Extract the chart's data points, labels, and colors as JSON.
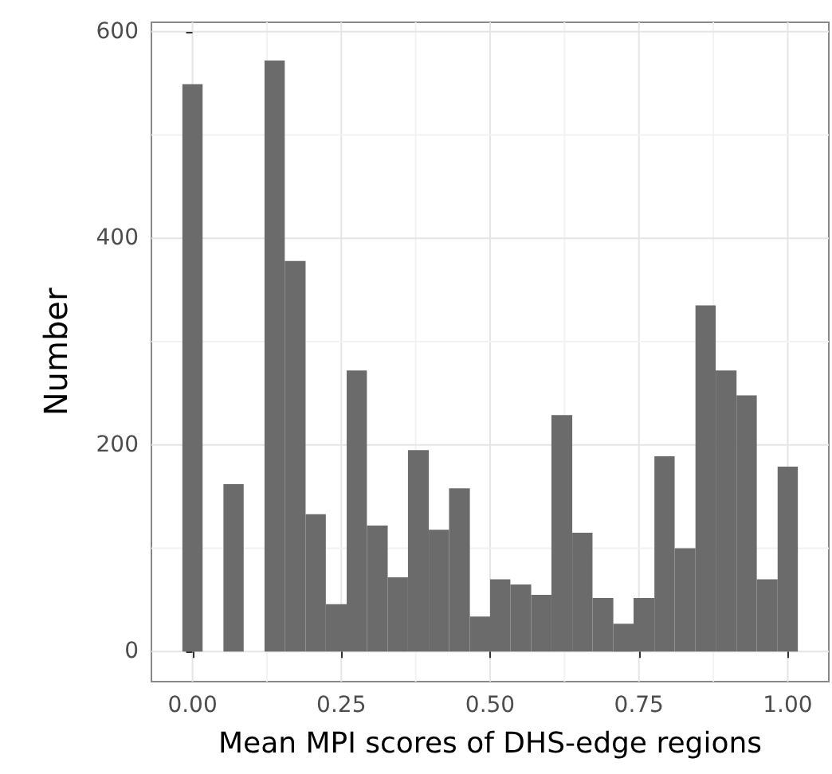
{
  "chart_data": {
    "type": "histogram",
    "xlabel": "Mean MPI scores of DHS-edge regions",
    "ylabel": "Number",
    "color": "#6b6b6b",
    "bins": [
      -0.017,
      0.017,
      0.052,
      0.086,
      0.121,
      0.155,
      0.19,
      0.224,
      0.259,
      0.293,
      0.328,
      0.362,
      0.397,
      0.431,
      0.466,
      0.5,
      0.534,
      0.569,
      0.603,
      0.638,
      0.672,
      0.707,
      0.741,
      0.776,
      0.81,
      0.845,
      0.879,
      0.914,
      0.948,
      0.983,
      1.017
    ],
    "values": [
      549,
      0,
      162,
      0,
      572,
      378,
      133,
      46,
      272,
      122,
      72,
      195,
      118,
      158,
      34,
      70,
      65,
      55,
      229,
      115,
      52,
      27,
      52,
      189,
      100,
      335,
      272,
      248,
      70,
      179
    ],
    "xlim": [
      -0.069,
      1.069
    ],
    "xticks": [
      {
        "value": 0,
        "label": "0.00"
      },
      {
        "value": 0.25,
        "label": "0.25"
      },
      {
        "value": 0.5,
        "label": "0.50"
      },
      {
        "value": 0.75,
        "label": "0.75"
      },
      {
        "value": 1,
        "label": "1.00"
      }
    ],
    "ylim": [
      -29,
      609
    ],
    "yticks": [
      0,
      200,
      400,
      600
    ],
    "grid": true
  }
}
